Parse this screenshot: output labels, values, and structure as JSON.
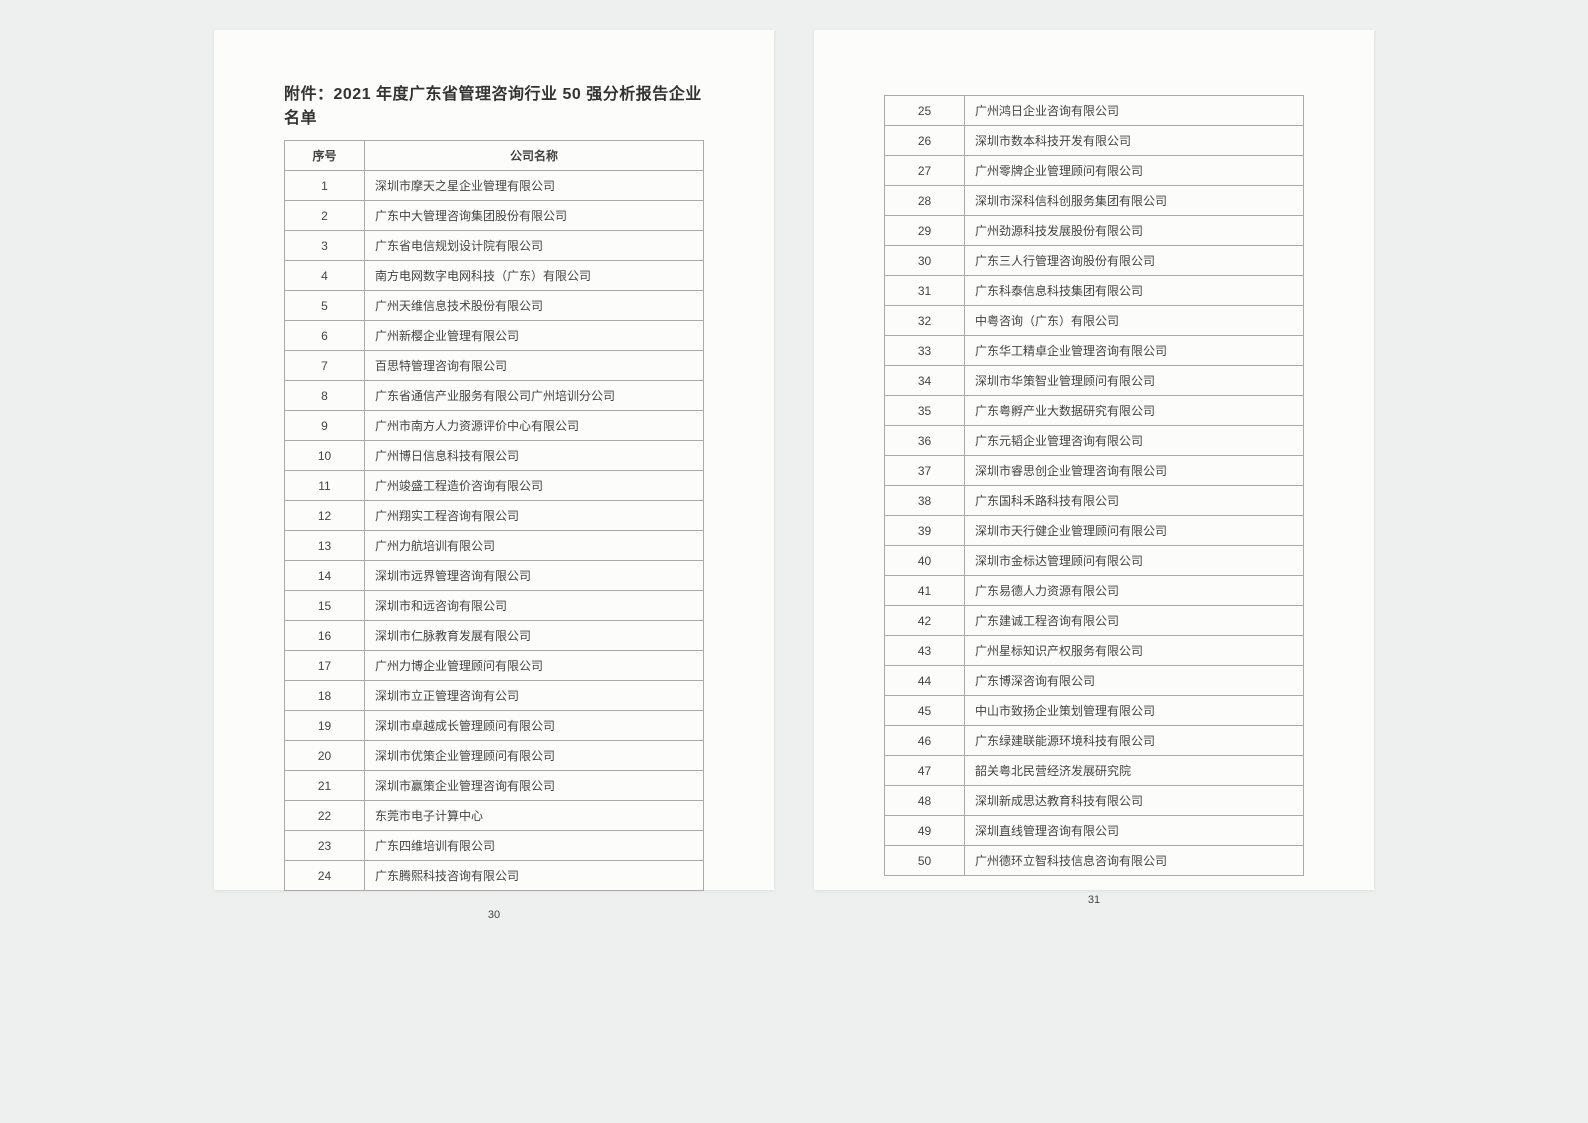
{
  "title": "附件：2021 年度广东省管理咨询行业 50 强分析报告企业名单",
  "headers": {
    "col1": "序号",
    "col2": "公司名称"
  },
  "leftPage": {
    "number": "30",
    "rows": [
      {
        "n": "1",
        "name": "深圳市摩天之星企业管理有限公司"
      },
      {
        "n": "2",
        "name": "广东中大管理咨询集团股份有限公司"
      },
      {
        "n": "3",
        "name": "广东省电信规划设计院有限公司"
      },
      {
        "n": "4",
        "name": "南方电网数字电网科技（广东）有限公司"
      },
      {
        "n": "5",
        "name": "广州天维信息技术股份有限公司"
      },
      {
        "n": "6",
        "name": "广州新樱企业管理有限公司"
      },
      {
        "n": "7",
        "name": "百思特管理咨询有限公司"
      },
      {
        "n": "8",
        "name": "广东省通信产业服务有限公司广州培训分公司"
      },
      {
        "n": "9",
        "name": "广州市南方人力资源评价中心有限公司"
      },
      {
        "n": "10",
        "name": "广州博日信息科技有限公司"
      },
      {
        "n": "11",
        "name": "广州竣盛工程造价咨询有限公司"
      },
      {
        "n": "12",
        "name": "广州翔实工程咨询有限公司"
      },
      {
        "n": "13",
        "name": "广州力航培训有限公司"
      },
      {
        "n": "14",
        "name": "深圳市远界管理咨询有限公司"
      },
      {
        "n": "15",
        "name": "深圳市和远咨询有限公司"
      },
      {
        "n": "16",
        "name": "深圳市仁脉教育发展有限公司"
      },
      {
        "n": "17",
        "name": "广州力博企业管理顾问有限公司"
      },
      {
        "n": "18",
        "name": "深圳市立正管理咨询有公司"
      },
      {
        "n": "19",
        "name": "深圳市卓越成长管理顾问有限公司"
      },
      {
        "n": "20",
        "name": "深圳市优策企业管理顾问有限公司"
      },
      {
        "n": "21",
        "name": "深圳市赢策企业管理咨询有限公司"
      },
      {
        "n": "22",
        "name": "东莞市电子计算中心"
      },
      {
        "n": "23",
        "name": "广东四维培训有限公司"
      },
      {
        "n": "24",
        "name": "广东腾熙科技咨询有限公司"
      }
    ]
  },
  "rightPage": {
    "number": "31",
    "rows": [
      {
        "n": "25",
        "name": "广州鸿日企业咨询有限公司"
      },
      {
        "n": "26",
        "name": "深圳市数本科技开发有限公司"
      },
      {
        "n": "27",
        "name": "广州零牌企业管理顾问有限公司"
      },
      {
        "n": "28",
        "name": "深圳市深科信科创服务集团有限公司"
      },
      {
        "n": "29",
        "name": "广州劲源科技发展股份有限公司"
      },
      {
        "n": "30",
        "name": "广东三人行管理咨询股份有限公司"
      },
      {
        "n": "31",
        "name": "广东科泰信息科技集团有限公司"
      },
      {
        "n": "32",
        "name": "中粤咨询（广东）有限公司"
      },
      {
        "n": "33",
        "name": "广东华工精卓企业管理咨询有限公司"
      },
      {
        "n": "34",
        "name": "深圳市华策智业管理顾问有限公司"
      },
      {
        "n": "35",
        "name": "广东粤孵产业大数据研究有限公司"
      },
      {
        "n": "36",
        "name": "广东元韬企业管理咨询有限公司"
      },
      {
        "n": "37",
        "name": "深圳市睿思创企业管理咨询有限公司"
      },
      {
        "n": "38",
        "name": "广东国科禾路科技有限公司"
      },
      {
        "n": "39",
        "name": "深圳市天行健企业管理顾问有限公司"
      },
      {
        "n": "40",
        "name": "深圳市金标达管理顾问有限公司"
      },
      {
        "n": "41",
        "name": "广东易德人力资源有限公司"
      },
      {
        "n": "42",
        "name": "广东建诚工程咨询有限公司"
      },
      {
        "n": "43",
        "name": "广州星标知识产权服务有限公司"
      },
      {
        "n": "44",
        "name": "广东博深咨询有限公司"
      },
      {
        "n": "45",
        "name": "中山市致扬企业策划管理有限公司"
      },
      {
        "n": "46",
        "name": "广东绿建联能源环境科技有限公司"
      },
      {
        "n": "47",
        "name": "韶关粤北民营经济发展研究院"
      },
      {
        "n": "48",
        "name": "深圳新成思达教育科技有限公司"
      },
      {
        "n": "49",
        "name": "深圳直线管理咨询有限公司"
      },
      {
        "n": "50",
        "name": "广州德环立智科技信息咨询有限公司"
      }
    ]
  }
}
